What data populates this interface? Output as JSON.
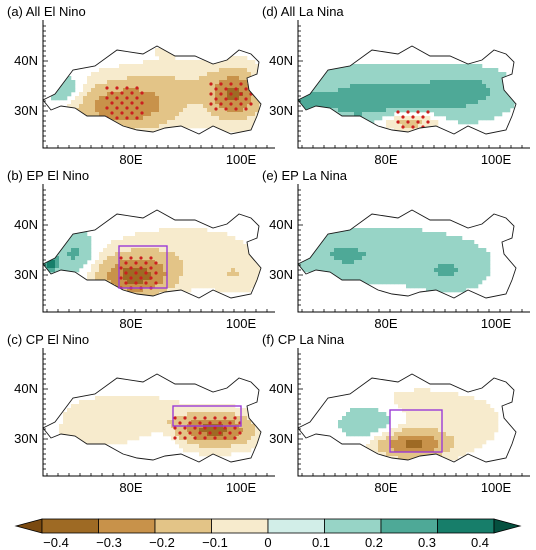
{
  "figure": {
    "panels": [
      {
        "id": "a",
        "title": "(a) All El Nino",
        "mode": "all_el",
        "box": false,
        "lat_labels": [
          "40N",
          "30N"
        ],
        "lon_labels": [
          "80E",
          "100E"
        ]
      },
      {
        "id": "d",
        "title": "(d) All La Nina",
        "mode": "all_la",
        "box": false,
        "lat_labels": [
          "40N",
          "30N"
        ],
        "lon_labels": [
          "80E",
          "100E"
        ]
      },
      {
        "id": "b",
        "title": "(b) EP El Nino",
        "mode": "ep_el",
        "box": true,
        "lat_labels": [
          "40N",
          "30N"
        ],
        "lon_labels": [
          "80E",
          "100E"
        ]
      },
      {
        "id": "e",
        "title": "(e) EP La Nina",
        "mode": "ep_la",
        "box": false,
        "lat_labels": [
          "40N",
          "30N"
        ],
        "lon_labels": [
          "80E",
          "100E"
        ]
      },
      {
        "id": "c",
        "title": "(c) CP El Nino",
        "mode": "cp_el",
        "box": true,
        "lat_labels": [
          "40N",
          "30N"
        ],
        "lon_labels": [
          "80E",
          "100E"
        ]
      },
      {
        "id": "f",
        "title": "(f) CP La Nina",
        "mode": "cp_la",
        "box": true,
        "lat_labels": [
          "40N",
          "30N"
        ],
        "lon_labels": [
          "80E",
          "100E"
        ]
      }
    ],
    "colorbar": {
      "labels": [
        "−0.4",
        "−0.3",
        "−0.2",
        "−0.1",
        "0",
        "0.1",
        "0.2",
        "0.3",
        "0.4"
      ],
      "colors": [
        "#7a4a10",
        "#9e6a24",
        "#c8924a",
        "#e3c487",
        "#f7ebcd",
        "#d2eee8",
        "#97d4c6",
        "#4ea997",
        "#177e6a",
        "#05503f"
      ]
    },
    "significance_color": "#cc1f1f",
    "box_color": "#9b3bd6"
  }
}
